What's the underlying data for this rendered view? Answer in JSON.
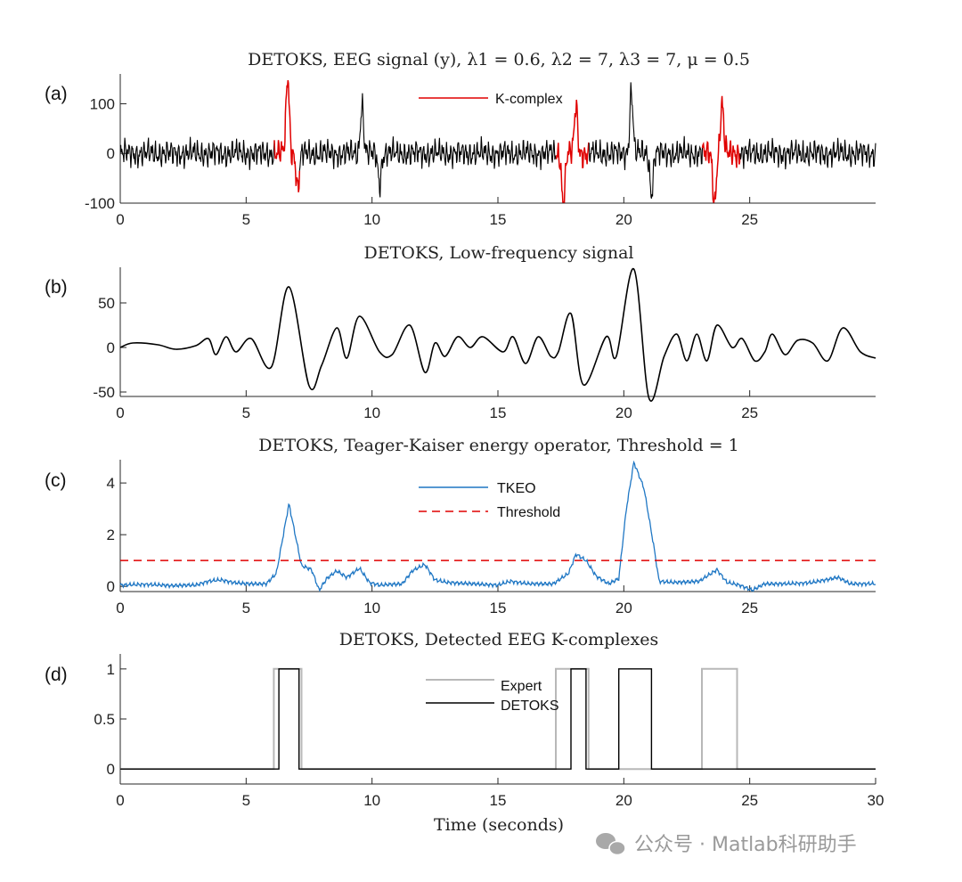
{
  "watermark": "公众号 · Matlab科研助手",
  "watermark_icon": "wechat-icon",
  "colors": {
    "eeg": "#000000",
    "kcomplex": "#e00000",
    "tkeo": "#1f77c4",
    "threshold": "#e00000",
    "expert": "#b8b8b8",
    "detoks": "#000000",
    "axis": "#262626"
  },
  "chart_data": [
    {
      "type": "line",
      "panel_label": "(a)",
      "title": "DETOKS, EEG signal (y), λ1 = 0.6, λ2 = 7, λ3 = 7, μ = 0.5",
      "xlabel": "",
      "ylabel": "",
      "xlim": [
        0,
        30
      ],
      "ylim": [
        -100,
        160
      ],
      "xticks": [
        0,
        5,
        10,
        15,
        20,
        25
      ],
      "yticks": [
        -100,
        0,
        100
      ],
      "legend": {
        "position": "top-center",
        "entries": [
          "K-complex"
        ]
      },
      "signal": "noisy EEG trace, amplitude roughly ±30 with spikes",
      "peaks": [
        {
          "x": 6.65,
          "y": 155
        },
        {
          "x": 7.05,
          "y": -70
        },
        {
          "x": 9.6,
          "y": 100
        },
        {
          "x": 10.3,
          "y": -60
        },
        {
          "x": 17.6,
          "y": -105
        },
        {
          "x": 18.1,
          "y": 95
        },
        {
          "x": 20.3,
          "y": 125
        },
        {
          "x": 21.1,
          "y": -80
        },
        {
          "x": 23.6,
          "y": -100
        },
        {
          "x": 23.9,
          "y": 100
        }
      ],
      "kcomplex_segments": [
        [
          6.1,
          7.1
        ],
        [
          17.3,
          18.6
        ],
        [
          23.1,
          24.6
        ]
      ]
    },
    {
      "type": "line",
      "panel_label": "(b)",
      "title": "DETOKS, Low-frequency signal",
      "xlabel": "",
      "ylabel": "",
      "xlim": [
        0,
        30
      ],
      "ylim": [
        -55,
        90
      ],
      "xticks": [
        0,
        5,
        10,
        15,
        20,
        25
      ],
      "yticks": [
        -50,
        0,
        50
      ],
      "points": [
        [
          0,
          0
        ],
        [
          0.5,
          5
        ],
        [
          1.5,
          3
        ],
        [
          2.2,
          -2
        ],
        [
          3,
          2
        ],
        [
          3.5,
          10
        ],
        [
          3.8,
          -8
        ],
        [
          4.2,
          12
        ],
        [
          4.6,
          -5
        ],
        [
          5.2,
          10
        ],
        [
          6,
          -22
        ],
        [
          6.7,
          68
        ],
        [
          7.5,
          -43
        ],
        [
          8,
          -20
        ],
        [
          8.6,
          22
        ],
        [
          9,
          -12
        ],
        [
          9.5,
          35
        ],
        [
          10.3,
          -5
        ],
        [
          10.8,
          -8
        ],
        [
          11.5,
          25
        ],
        [
          12.1,
          -28
        ],
        [
          12.5,
          5
        ],
        [
          12.9,
          -10
        ],
        [
          13.4,
          12
        ],
        [
          13.9,
          0
        ],
        [
          14.4,
          12
        ],
        [
          15.2,
          -5
        ],
        [
          15.6,
          12
        ],
        [
          16.1,
          -18
        ],
        [
          16.6,
          12
        ],
        [
          17.1,
          -10
        ],
        [
          17.4,
          -5
        ],
        [
          17.9,
          38
        ],
        [
          18.4,
          -42
        ],
        [
          19.3,
          12
        ],
        [
          19.7,
          -10
        ],
        [
          20.4,
          88
        ],
        [
          21,
          -57
        ],
        [
          21.6,
          -10
        ],
        [
          22.1,
          15
        ],
        [
          22.5,
          -15
        ],
        [
          22.9,
          15
        ],
        [
          23.3,
          -15
        ],
        [
          23.7,
          25
        ],
        [
          24.3,
          0
        ],
        [
          24.7,
          10
        ],
        [
          25.2,
          -15
        ],
        [
          25.6,
          -5
        ],
        [
          25.9,
          15
        ],
        [
          26.4,
          -8
        ],
        [
          26.9,
          8
        ],
        [
          27.5,
          5
        ],
        [
          28.1,
          -15
        ],
        [
          28.7,
          22
        ],
        [
          29.4,
          -5
        ],
        [
          30,
          -12
        ]
      ]
    },
    {
      "type": "line",
      "panel_label": "(c)",
      "title": "DETOKS, Teager-Kaiser energy operator, Threshold = 1",
      "xlabel": "",
      "ylabel": "",
      "xlim": [
        0,
        30
      ],
      "ylim": [
        -0.2,
        4.9
      ],
      "xticks": [
        0,
        5,
        10,
        15,
        20,
        25
      ],
      "yticks": [
        0,
        2,
        4
      ],
      "legend": {
        "position": "top-center",
        "entries": [
          "TKEO",
          "Threshold"
        ]
      },
      "threshold": 1,
      "series": [
        {
          "name": "TKEO",
          "points": [
            [
              0,
              0.05
            ],
            [
              1,
              0.08
            ],
            [
              2,
              0.03
            ],
            [
              3,
              0.05
            ],
            [
              3.5,
              0.2
            ],
            [
              4,
              0.25
            ],
            [
              4.5,
              0.15
            ],
            [
              5,
              0.1
            ],
            [
              5.8,
              0.1
            ],
            [
              6.2,
              0.5
            ],
            [
              6.7,
              3.2
            ],
            [
              7.2,
              0.8
            ],
            [
              7.6,
              0.65
            ],
            [
              7.9,
              -0.15
            ],
            [
              8.2,
              0.3
            ],
            [
              8.6,
              0.6
            ],
            [
              9,
              0.35
            ],
            [
              9.5,
              0.7
            ],
            [
              9.9,
              0.15
            ],
            [
              10.3,
              0.05
            ],
            [
              11.2,
              0.1
            ],
            [
              11.6,
              0.6
            ],
            [
              12.1,
              0.85
            ],
            [
              12.5,
              0.25
            ],
            [
              13,
              0.15
            ],
            [
              14,
              0.1
            ],
            [
              15,
              0.05
            ],
            [
              15.5,
              0.2
            ],
            [
              16.2,
              0.1
            ],
            [
              17.2,
              0.1
            ],
            [
              17.8,
              0.5
            ],
            [
              18.1,
              1.25
            ],
            [
              18.5,
              1.0
            ],
            [
              18.9,
              0.4
            ],
            [
              19.4,
              0.1
            ],
            [
              19.8,
              0.3
            ],
            [
              20.1,
              3.0
            ],
            [
              20.4,
              4.8
            ],
            [
              20.8,
              3.8
            ],
            [
              21.2,
              1.5
            ],
            [
              21.4,
              0.2
            ],
            [
              22,
              0.15
            ],
            [
              23,
              0.2
            ],
            [
              23.7,
              0.65
            ],
            [
              24.1,
              0.15
            ],
            [
              24.6,
              0.05
            ],
            [
              25.1,
              -0.15
            ],
            [
              25.6,
              0.1
            ],
            [
              26.5,
              0.1
            ],
            [
              27.5,
              0.15
            ],
            [
              28.5,
              0.35
            ],
            [
              29,
              0.1
            ],
            [
              30,
              0.1
            ]
          ]
        }
      ]
    },
    {
      "type": "line",
      "panel_label": "(d)",
      "title": "DETOKS, Detected EEG K-complexes",
      "xlabel": "Time (seconds)",
      "ylabel": "",
      "xlim": [
        0,
        30
      ],
      "ylim": [
        -0.15,
        1.15
      ],
      "xticks": [
        0,
        5,
        10,
        15,
        20,
        25,
        30
      ],
      "yticks": [
        0,
        0.5,
        1
      ],
      "legend": {
        "position": "top-center",
        "entries": [
          "Expert",
          "DETOKS"
        ]
      },
      "series": [
        {
          "name": "Expert",
          "intervals": [
            [
              6.1,
              7.2
            ],
            [
              17.3,
              18.6
            ],
            [
              23.1,
              24.5
            ]
          ]
        },
        {
          "name": "DETOKS",
          "intervals": [
            [
              6.3,
              7.1
            ],
            [
              17.9,
              18.5
            ],
            [
              19.8,
              21.1
            ]
          ]
        }
      ]
    }
  ]
}
